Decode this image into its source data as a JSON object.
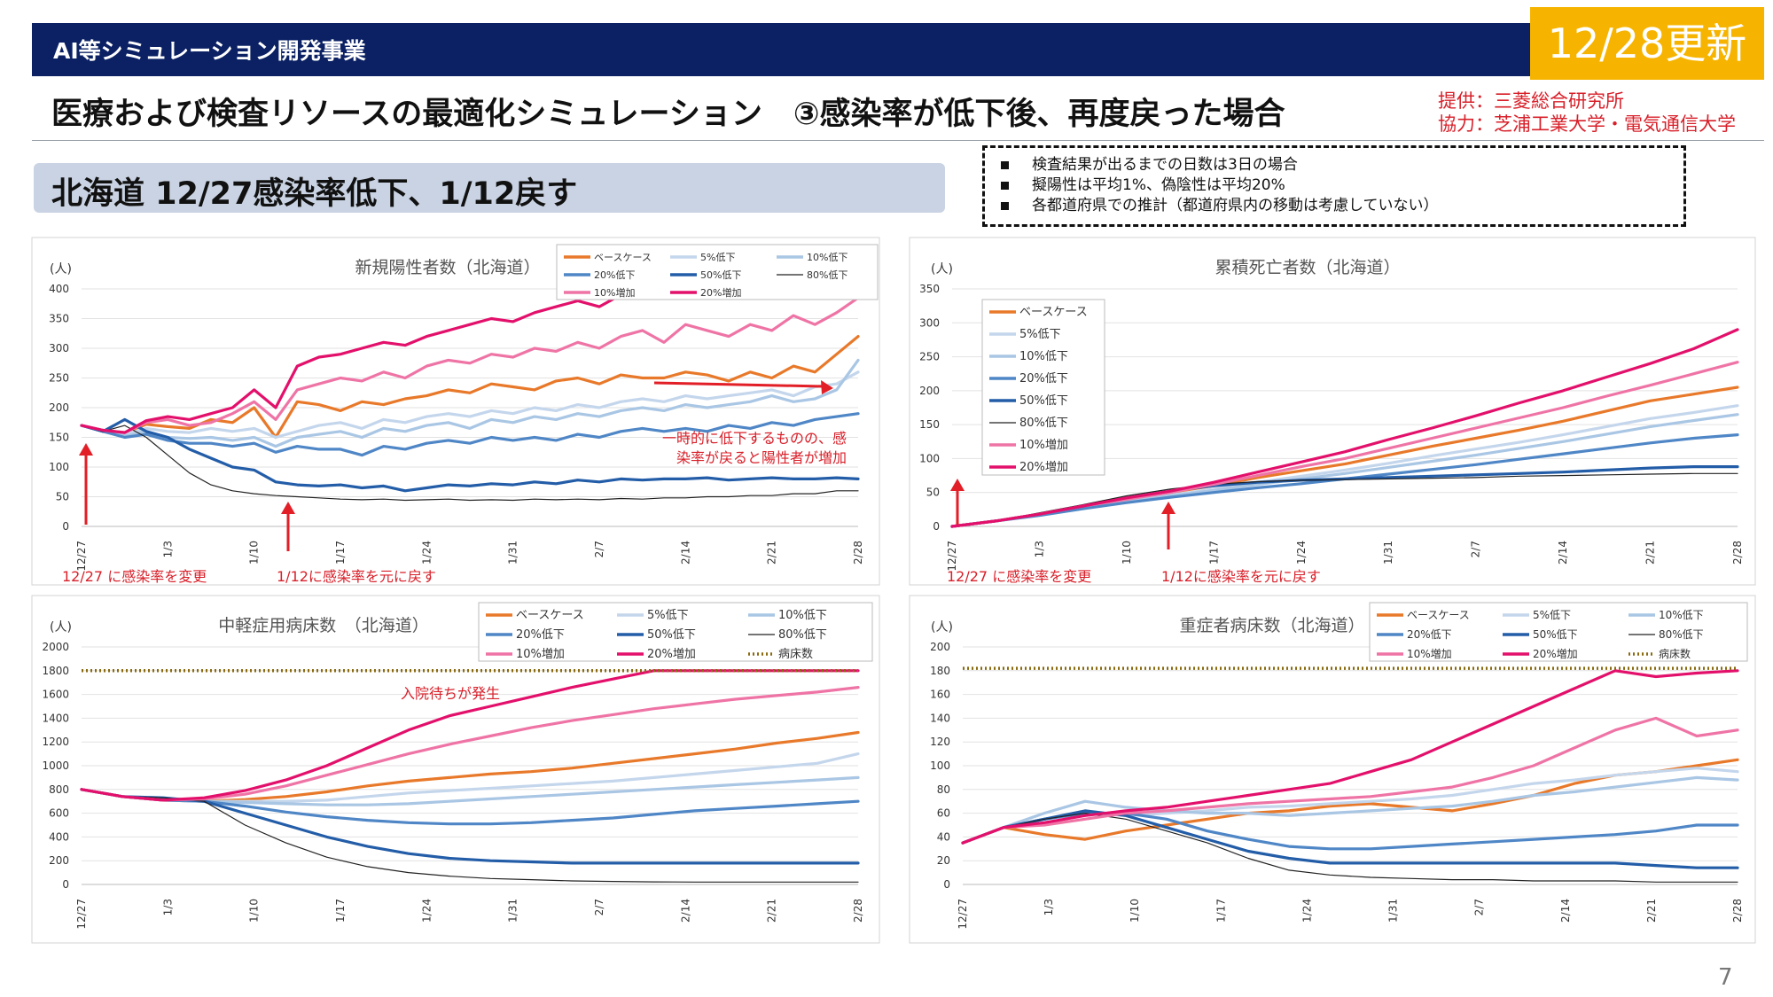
{
  "header": {
    "program": "AI等シミュレーション開発事業",
    "update_badge": "12/28更新",
    "title": "医療および検査リソースの最適化シミュレーション　③感染率が低下後、再度戻った場合",
    "provider": "提供：三菱総合研究所",
    "cooperation": "協力：芝浦工業大学・電気通信大学",
    "subtitle": "北海道 12/27感染率低下、1/12戻す"
  },
  "notes": [
    "検査結果が出るまでの日数は3日の場合",
    "擬陽性は平均1%、偽陰性は平均20%",
    "各都道府県での推計（都道府県内の移動は考慮していない）"
  ],
  "page_number": "7",
  "legend_colors": {
    "ベースケース": "#e8792a",
    "5%低下": "#c4d6ec",
    "10%低下": "#a9c6e4",
    "20%低下": "#4f86c6",
    "50%低下": "#235da8",
    "80%低下": "#222222",
    "10%増加": "#ef74a6",
    "20%増加": "#e3106b",
    "病床数": "#8a6a10"
  },
  "chart_data": [
    {
      "type": "line",
      "title": "新規陽性者数（北海道）",
      "ylabel": "(人)",
      "ylim": [
        0,
        400
      ],
      "yticks": [
        "0",
        "50",
        "100",
        "150",
        "200",
        "250",
        "300",
        "350",
        "400"
      ],
      "xticks": [
        "12/27",
        "1/3",
        "1/10",
        "1/17",
        "1/24",
        "1/31",
        "2/7",
        "2/14",
        "2/21",
        "2/28"
      ],
      "annotations": [
        "12/27 に感染率を変更",
        "1/12に感染率を元に戻す",
        "一時的に低下するものの、感",
        "染率が戻ると陽性者が増加"
      ],
      "series": [
        {
          "name": "ベースケース",
          "values": [
            170,
            162,
            158,
            172,
            168,
            165,
            180,
            175,
            200,
            150,
            210,
            205,
            195,
            210,
            205,
            215,
            220,
            230,
            225,
            240,
            235,
            230,
            245,
            250,
            240,
            255,
            250,
            250,
            260,
            255,
            245,
            260,
            250,
            270,
            260,
            290,
            320
          ]
        },
        {
          "name": "5%低下",
          "values": [
            170,
            162,
            155,
            165,
            160,
            158,
            165,
            160,
            165,
            150,
            160,
            170,
            175,
            165,
            180,
            175,
            185,
            190,
            185,
            195,
            190,
            200,
            195,
            205,
            200,
            210,
            215,
            210,
            220,
            215,
            220,
            225,
            230,
            220,
            235,
            240,
            260
          ]
        },
        {
          "name": "10%低下",
          "values": [
            170,
            162,
            152,
            160,
            150,
            148,
            150,
            145,
            150,
            135,
            150,
            155,
            160,
            150,
            165,
            160,
            170,
            175,
            165,
            180,
            175,
            185,
            180,
            190,
            185,
            195,
            200,
            195,
            205,
            200,
            205,
            210,
            220,
            210,
            215,
            230,
            280
          ]
        },
        {
          "name": "20%低下",
          "values": [
            170,
            160,
            150,
            155,
            145,
            140,
            140,
            135,
            140,
            125,
            135,
            130,
            130,
            120,
            135,
            130,
            140,
            145,
            140,
            150,
            145,
            150,
            145,
            155,
            150,
            160,
            165,
            160,
            165,
            160,
            170,
            165,
            175,
            170,
            180,
            185,
            190
          ]
        },
        {
          "name": "50%低下",
          "values": [
            170,
            160,
            180,
            160,
            150,
            130,
            115,
            100,
            95,
            75,
            70,
            68,
            70,
            65,
            68,
            60,
            65,
            70,
            68,
            72,
            70,
            75,
            72,
            78,
            75,
            80,
            78,
            80,
            80,
            82,
            78,
            80,
            82,
            80,
            80,
            82,
            80
          ]
        },
        {
          "name": "80%低下",
          "values": [
            170,
            160,
            170,
            150,
            120,
            90,
            70,
            60,
            55,
            52,
            50,
            48,
            46,
            45,
            46,
            44,
            45,
            46,
            44,
            45,
            44,
            46,
            45,
            46,
            45,
            47,
            46,
            48,
            48,
            50,
            50,
            52,
            52,
            55,
            55,
            60,
            60
          ]
        },
        {
          "name": "10%増加",
          "values": [
            170,
            162,
            158,
            175,
            180,
            170,
            175,
            190,
            210,
            180,
            230,
            240,
            250,
            245,
            260,
            250,
            270,
            280,
            275,
            290,
            285,
            300,
            295,
            310,
            300,
            320,
            330,
            310,
            340,
            330,
            320,
            340,
            330,
            355,
            340,
            360,
            385
          ]
        },
        {
          "name": "20%増加",
          "values": [
            170,
            162,
            158,
            178,
            185,
            180,
            190,
            200,
            230,
            200,
            270,
            285,
            290,
            300,
            310,
            305,
            320,
            330,
            340,
            350,
            345,
            360,
            370,
            380,
            370,
            390,
            395,
            390,
            400,
            400,
            400,
            400,
            400,
            400,
            400,
            400,
            400
          ]
        }
      ]
    },
    {
      "type": "line",
      "title": "累積死亡者数（北海道）",
      "ylabel": "(人)",
      "ylim": [
        0,
        350
      ],
      "yticks": [
        "0",
        "50",
        "100",
        "150",
        "200",
        "250",
        "300",
        "350"
      ],
      "xticks": [
        "12/27",
        "1/3",
        "1/10",
        "1/17",
        "1/24",
        "1/31",
        "2/7",
        "2/14",
        "2/21",
        "2/28"
      ],
      "annotations": [
        "12/27 に感染率を変更",
        "1/12に感染率を元に戻す"
      ],
      "series": [
        {
          "name": "ベースケース",
          "values": [
            0,
            8,
            18,
            30,
            40,
            50,
            60,
            72,
            82,
            92,
            105,
            118,
            130,
            142,
            155,
            170,
            185,
            195,
            205
          ]
        },
        {
          "name": "5%低下",
          "values": [
            0,
            8,
            17,
            28,
            37,
            46,
            55,
            65,
            74,
            83,
            93,
            104,
            114,
            124,
            135,
            147,
            159,
            168,
            178
          ]
        },
        {
          "name": "10%低下",
          "values": [
            0,
            8,
            17,
            27,
            36,
            45,
            53,
            62,
            70,
            78,
            87,
            96,
            105,
            115,
            125,
            136,
            147,
            156,
            165
          ]
        },
        {
          "name": "20%低下",
          "values": [
            0,
            8,
            16,
            26,
            35,
            43,
            50,
            57,
            63,
            70,
            77,
            84,
            91,
            99,
            107,
            115,
            123,
            130,
            135
          ]
        },
        {
          "name": "50%低下",
          "values": [
            0,
            8,
            18,
            30,
            42,
            52,
            60,
            65,
            68,
            70,
            72,
            74,
            76,
            78,
            80,
            83,
            86,
            88,
            88
          ]
        },
        {
          "name": "80%低下",
          "values": [
            0,
            8,
            20,
            32,
            45,
            55,
            62,
            66,
            68,
            69,
            70,
            71,
            72,
            74,
            75,
            76,
            77,
            78,
            78
          ]
        },
        {
          "name": "10%増加",
          "values": [
            0,
            8,
            18,
            30,
            40,
            50,
            62,
            75,
            88,
            100,
            115,
            130,
            145,
            160,
            175,
            192,
            208,
            225,
            242
          ]
        },
        {
          "name": "20%増加",
          "values": [
            0,
            8,
            18,
            30,
            42,
            52,
            65,
            80,
            95,
            110,
            128,
            145,
            163,
            182,
            200,
            220,
            240,
            262,
            290
          ]
        }
      ]
    },
    {
      "type": "line",
      "title": "中軽症用病床数　（北海道）",
      "ylabel": "(人)",
      "ylim": [
        0,
        2000
      ],
      "yticks": [
        "0",
        "200",
        "400",
        "600",
        "800",
        "1000",
        "1200",
        "1400",
        "1600",
        "1800",
        "2000"
      ],
      "xticks": [
        "12/27",
        "1/3",
        "1/10",
        "1/17",
        "1/24",
        "1/31",
        "2/7",
        "2/14",
        "2/21",
        "2/28"
      ],
      "annotations": [
        "入院待ちが発生"
      ],
      "series": [
        {
          "name": "ベースケース",
          "values": [
            800,
            740,
            710,
            700,
            715,
            740,
            780,
            830,
            870,
            900,
            930,
            950,
            980,
            1020,
            1060,
            1100,
            1140,
            1190,
            1230,
            1280
          ]
        },
        {
          "name": "5%低下",
          "values": [
            800,
            740,
            710,
            700,
            700,
            700,
            710,
            740,
            770,
            790,
            810,
            830,
            850,
            870,
            900,
            930,
            960,
            990,
            1020,
            1100
          ]
        },
        {
          "name": "10%低下",
          "values": [
            800,
            740,
            710,
            700,
            690,
            680,
            670,
            670,
            680,
            700,
            720,
            740,
            760,
            780,
            800,
            820,
            840,
            860,
            880,
            900
          ]
        },
        {
          "name": "20%低下",
          "values": [
            800,
            740,
            710,
            700,
            660,
            610,
            570,
            540,
            520,
            510,
            510,
            520,
            540,
            560,
            590,
            620,
            640,
            660,
            680,
            700
          ]
        },
        {
          "name": "50%低下",
          "values": [
            800,
            740,
            730,
            700,
            600,
            500,
            400,
            320,
            260,
            220,
            200,
            190,
            180,
            180,
            180,
            180,
            180,
            180,
            180,
            180
          ]
        },
        {
          "name": "80%低下",
          "values": [
            800,
            740,
            730,
            700,
            500,
            350,
            230,
            150,
            100,
            70,
            50,
            40,
            30,
            25,
            22,
            20,
            20,
            20,
            20,
            20
          ]
        },
        {
          "name": "10%増加",
          "values": [
            800,
            740,
            710,
            720,
            760,
            830,
            920,
            1010,
            1100,
            1180,
            1250,
            1320,
            1380,
            1430,
            1480,
            1520,
            1560,
            1590,
            1620,
            1660
          ]
        },
        {
          "name": "20%増加",
          "values": [
            800,
            740,
            710,
            730,
            790,
            880,
            1000,
            1150,
            1300,
            1420,
            1500,
            1580,
            1660,
            1730,
            1800,
            1800,
            1800,
            1800,
            1800,
            1800
          ]
        },
        {
          "name": "病床数",
          "values": [
            1800,
            1800,
            1800,
            1800,
            1800,
            1800,
            1800,
            1800,
            1800,
            1800,
            1800,
            1800,
            1800,
            1800,
            1800,
            1800,
            1800,
            1800,
            1800,
            1800
          ]
        }
      ]
    },
    {
      "type": "line",
      "title": "重症者病床数（北海道）",
      "ylabel": "(人)",
      "ylim": [
        0,
        200
      ],
      "yticks": [
        "0",
        "20",
        "40",
        "60",
        "80",
        "100",
        "120",
        "140",
        "160",
        "180",
        "200"
      ],
      "xticks": [
        "12/27",
        "1/3",
        "1/10",
        "1/17",
        "1/24",
        "1/31",
        "2/7",
        "2/14",
        "2/21",
        "2/28"
      ],
      "series": [
        {
          "name": "ベースケース",
          "values": [
            35,
            48,
            42,
            38,
            45,
            50,
            55,
            60,
            62,
            66,
            68,
            65,
            62,
            68,
            75,
            85,
            92,
            95,
            100,
            105
          ]
        },
        {
          "name": "5%低下",
          "values": [
            35,
            48,
            55,
            60,
            58,
            60,
            62,
            65,
            66,
            68,
            70,
            72,
            75,
            80,
            85,
            88,
            92,
            95,
            98,
            95
          ]
        },
        {
          "name": "10%低下",
          "values": [
            35,
            48,
            60,
            70,
            65,
            62,
            60,
            60,
            58,
            60,
            62,
            64,
            66,
            70,
            75,
            78,
            82,
            86,
            90,
            88
          ]
        },
        {
          "name": "20%低下",
          "values": [
            35,
            48,
            55,
            60,
            60,
            55,
            45,
            38,
            32,
            30,
            30,
            32,
            34,
            36,
            38,
            40,
            42,
            45,
            50,
            50
          ]
        },
        {
          "name": "50%低下",
          "values": [
            35,
            48,
            55,
            62,
            58,
            48,
            38,
            28,
            22,
            18,
            18,
            18,
            18,
            18,
            18,
            18,
            18,
            16,
            14,
            14
          ]
        },
        {
          "name": "80%低下",
          "values": [
            35,
            48,
            55,
            60,
            55,
            45,
            35,
            22,
            12,
            8,
            6,
            5,
            4,
            4,
            3,
            3,
            3,
            2,
            2,
            2
          ]
        },
        {
          "name": "10%増加",
          "values": [
            35,
            48,
            50,
            55,
            60,
            62,
            65,
            68,
            70,
            72,
            74,
            78,
            82,
            90,
            100,
            115,
            130,
            140,
            125,
            130
          ]
        },
        {
          "name": "20%増加",
          "values": [
            35,
            48,
            52,
            58,
            62,
            65,
            70,
            75,
            80,
            85,
            95,
            105,
            120,
            135,
            150,
            165,
            180,
            175,
            178,
            180
          ]
        },
        {
          "name": "病床数",
          "values": [
            182,
            182,
            182,
            182,
            182,
            182,
            182,
            182,
            182,
            182,
            182,
            182,
            182,
            182,
            182,
            182,
            182,
            182,
            182,
            182
          ]
        }
      ]
    }
  ]
}
